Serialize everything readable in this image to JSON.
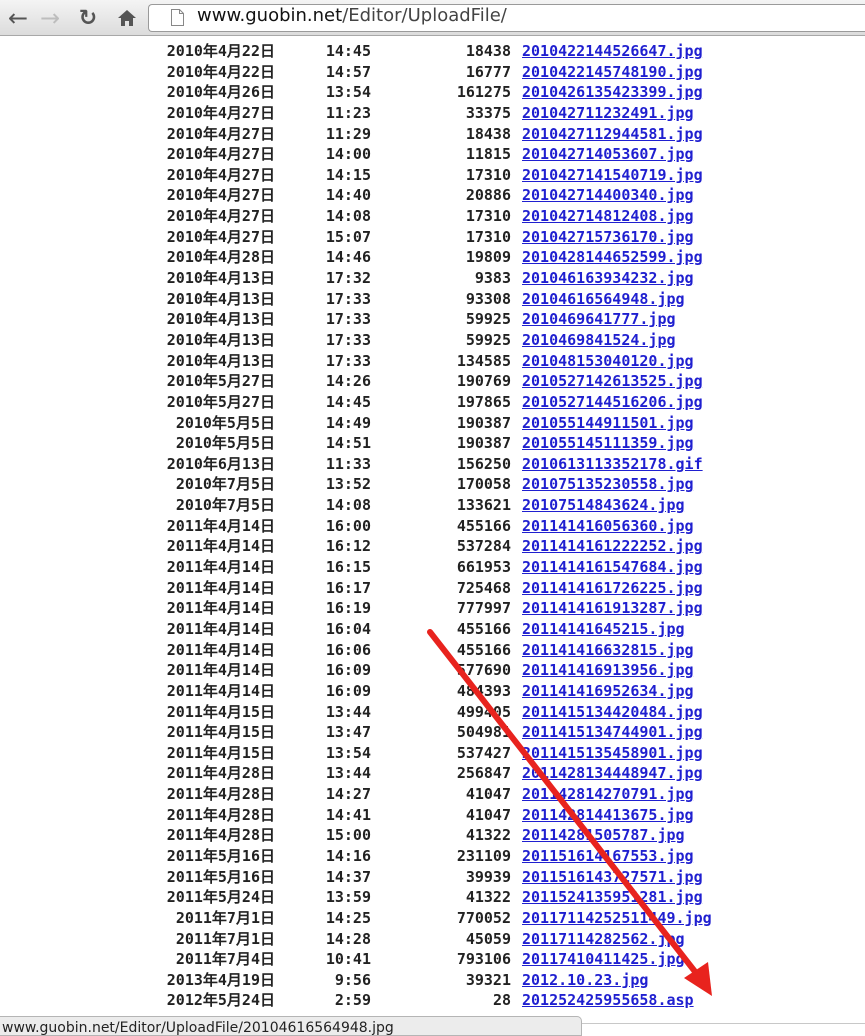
{
  "browser": {
    "url_host": "www.guobin.net",
    "url_path": "/Editor/UploadFile/",
    "status_text": "www.guobin.net/Editor/UploadFile/20104616564948.jpg"
  },
  "files": [
    {
      "date": "2010年4月22日",
      "time": "14:45",
      "size": "18438",
      "name": "2010422144526647.jpg"
    },
    {
      "date": "2010年4月22日",
      "time": "14:57",
      "size": "16777",
      "name": "2010422145748190.jpg"
    },
    {
      "date": "2010年4月26日",
      "time": "13:54",
      "size": "161275",
      "name": "2010426135423399.jpg"
    },
    {
      "date": "2010年4月27日",
      "time": "11:23",
      "size": "33375",
      "name": "201042711232491.jpg"
    },
    {
      "date": "2010年4月27日",
      "time": "11:29",
      "size": "18438",
      "name": "2010427112944581.jpg"
    },
    {
      "date": "2010年4月27日",
      "time": "14:00",
      "size": "11815",
      "name": "201042714053607.jpg"
    },
    {
      "date": "2010年4月27日",
      "time": "14:15",
      "size": "17310",
      "name": "2010427141540719.jpg"
    },
    {
      "date": "2010年4月27日",
      "time": "14:40",
      "size": "20886",
      "name": "201042714400340.jpg"
    },
    {
      "date": "2010年4月27日",
      "time": "14:08",
      "size": "17310",
      "name": "201042714812408.jpg"
    },
    {
      "date": "2010年4月27日",
      "time": "15:07",
      "size": "17310",
      "name": "201042715736170.jpg"
    },
    {
      "date": "2010年4月28日",
      "time": "14:46",
      "size": "19809",
      "name": "2010428144652599.jpg"
    },
    {
      "date": "2010年4月13日",
      "time": "17:32",
      "size": "9383",
      "name": "201046163934232.jpg"
    },
    {
      "date": "2010年4月13日",
      "time": "17:33",
      "size": "93308",
      "name": "20104616564948.jpg"
    },
    {
      "date": "2010年4月13日",
      "time": "17:33",
      "size": "59925",
      "name": "2010469641777.jpg"
    },
    {
      "date": "2010年4月13日",
      "time": "17:33",
      "size": "59925",
      "name": "2010469841524.jpg"
    },
    {
      "date": "2010年4月13日",
      "time": "17:33",
      "size": "134585",
      "name": "201048153040120.jpg"
    },
    {
      "date": "2010年5月27日",
      "time": "14:26",
      "size": "190769",
      "name": "2010527142613525.jpg"
    },
    {
      "date": "2010年5月27日",
      "time": "14:45",
      "size": "197865",
      "name": "2010527144516206.jpg"
    },
    {
      "date": "2010年5月5日",
      "time": "14:49",
      "size": "190387",
      "name": "201055144911501.jpg"
    },
    {
      "date": "2010年5月5日",
      "time": "14:51",
      "size": "190387",
      "name": "201055145111359.jpg"
    },
    {
      "date": "2010年6月13日",
      "time": "11:33",
      "size": "156250",
      "name": "2010613113352178.gif"
    },
    {
      "date": "2010年7月5日",
      "time": "13:52",
      "size": "170058",
      "name": "201075135230558.jpg"
    },
    {
      "date": "2010年7月5日",
      "time": "14:08",
      "size": "133621",
      "name": "20107514843624.jpg"
    },
    {
      "date": "2011年4月14日",
      "time": "16:00",
      "size": "455166",
      "name": "201141416056360.jpg"
    },
    {
      "date": "2011年4月14日",
      "time": "16:12",
      "size": "537284",
      "name": "2011414161222252.jpg"
    },
    {
      "date": "2011年4月14日",
      "time": "16:15",
      "size": "661953",
      "name": "2011414161547684.jpg"
    },
    {
      "date": "2011年4月14日",
      "time": "16:17",
      "size": "725468",
      "name": "2011414161726225.jpg"
    },
    {
      "date": "2011年4月14日",
      "time": "16:19",
      "size": "777997",
      "name": "2011414161913287.jpg"
    },
    {
      "date": "2011年4月14日",
      "time": "16:04",
      "size": "455166",
      "name": "20114141645215.jpg"
    },
    {
      "date": "2011年4月14日",
      "time": "16:06",
      "size": "455166",
      "name": "201141416632815.jpg"
    },
    {
      "date": "2011年4月14日",
      "time": "16:09",
      "size": "577690",
      "name": "201141416913956.jpg"
    },
    {
      "date": "2011年4月14日",
      "time": "16:09",
      "size": "484393",
      "name": "201141416952634.jpg"
    },
    {
      "date": "2011年4月15日",
      "time": "13:44",
      "size": "499405",
      "name": "2011415134420484.jpg"
    },
    {
      "date": "2011年4月15日",
      "time": "13:47",
      "size": "504981",
      "name": "2011415134744901.jpg"
    },
    {
      "date": "2011年4月15日",
      "time": "13:54",
      "size": "537427",
      "name": "2011415135458901.jpg"
    },
    {
      "date": "2011年4月28日",
      "time": "13:44",
      "size": "256847",
      "name": "2011428134448947.jpg"
    },
    {
      "date": "2011年4月28日",
      "time": "14:27",
      "size": "41047",
      "name": "201142814270791.jpg"
    },
    {
      "date": "2011年4月28日",
      "time": "14:41",
      "size": "41047",
      "name": "201142814413675.jpg"
    },
    {
      "date": "2011年4月28日",
      "time": "15:00",
      "size": "41322",
      "name": "20114281505787.jpg"
    },
    {
      "date": "2011年5月16日",
      "time": "14:16",
      "size": "231109",
      "name": "201151614167553.jpg"
    },
    {
      "date": "2011年5月16日",
      "time": "14:37",
      "size": "39939",
      "name": "2011516143727571.jpg"
    },
    {
      "date": "2011年5月24日",
      "time": "13:59",
      "size": "41322",
      "name": "2011524135951281.jpg"
    },
    {
      "date": "2011年7月1日",
      "time": "14:25",
      "size": "770052",
      "name": "20117114252511449.jpg"
    },
    {
      "date": "2011年7月1日",
      "time": "14:28",
      "size": "45059",
      "name": "20117114282562.jpg"
    },
    {
      "date": "2011年7月4日",
      "time": "10:41",
      "size": "793106",
      "name": "20117410411425.jpg"
    },
    {
      "date": "2013年4月19日",
      "time": "9:56",
      "size": "39321",
      "name": "2012.10.23.jpg"
    },
    {
      "date": "2012年5月24日",
      "time": "2:59",
      "size": "28",
      "name": "201252425955658.asp"
    }
  ],
  "annotation": {
    "arrow_color": "#e8231e"
  },
  "icons": {
    "back": "left-arrow",
    "forward": "right-arrow",
    "reload": "reload",
    "home": "home",
    "page": "document"
  }
}
